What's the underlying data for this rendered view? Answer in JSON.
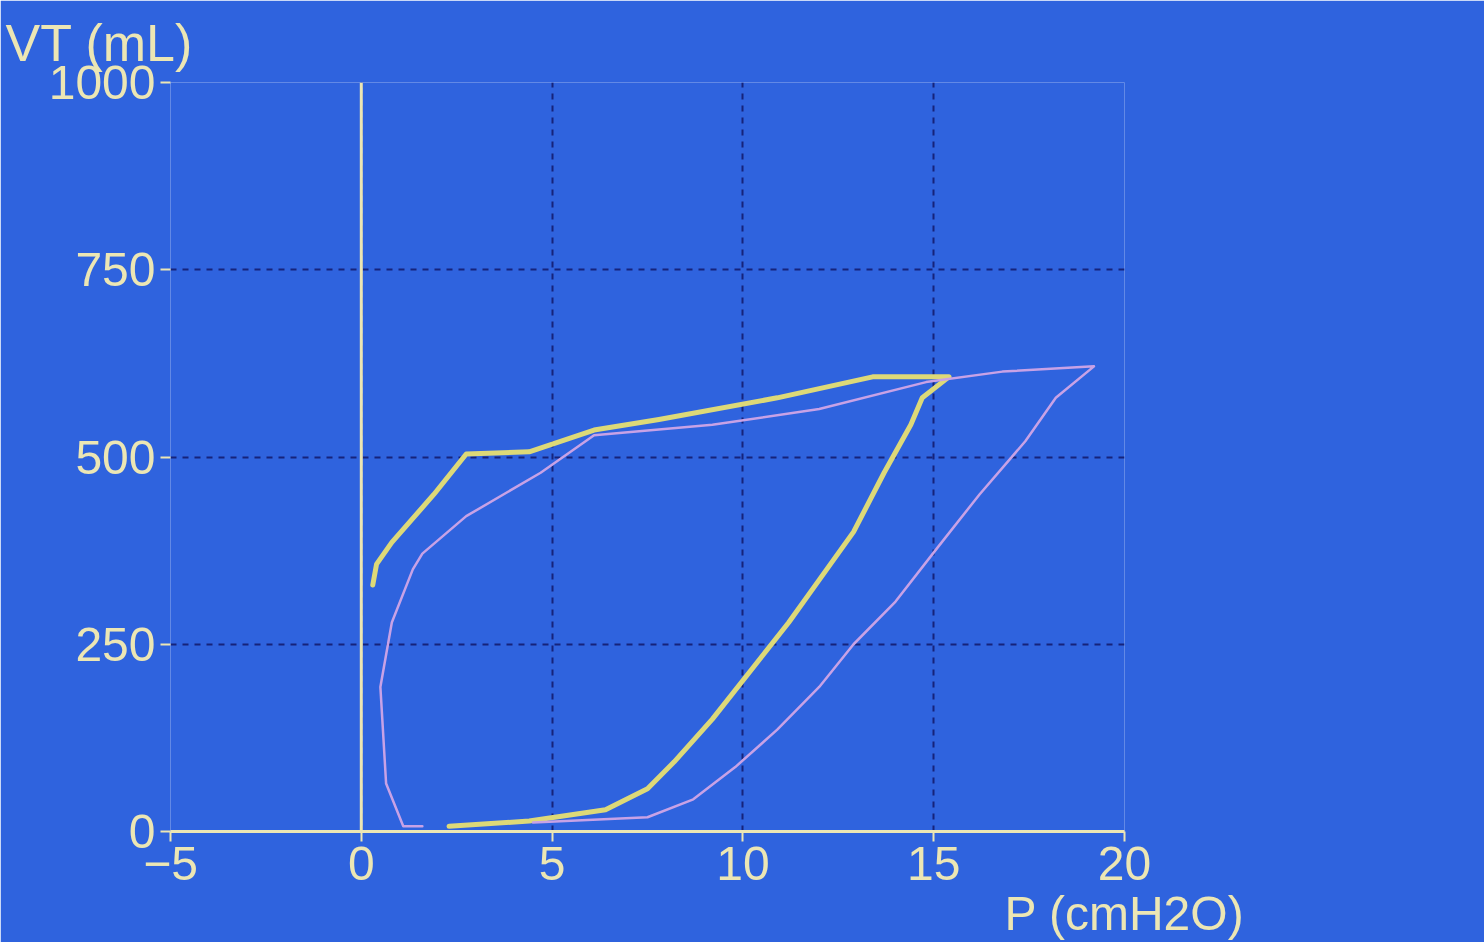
{
  "chart_data": {
    "type": "line",
    "xlabel": "P (cmH2O)",
    "ylabel": "VT (mL)",
    "xlim": [
      -5,
      20
    ],
    "ylim": [
      0,
      1000
    ],
    "xticks": [
      -5,
      0,
      5,
      10,
      15,
      20
    ],
    "yticks": [
      0,
      250,
      500,
      750,
      1000
    ],
    "grid": true,
    "marker": "none",
    "ref_lines": [
      {
        "axis": "x",
        "value": 0,
        "color": "#ece6b4"
      }
    ],
    "line_style": "solid",
    "series": [
      {
        "color": "#ddd978",
        "x": [
          2.3,
          4.4,
          6.4,
          7.5,
          8.2,
          9.2,
          10.3,
          11.2,
          12.0,
          12.9,
          13.7,
          14.4,
          14.7,
          15.4,
          13.4,
          10.9,
          7.8,
          6.1,
          4.4,
          2.75,
          1.9,
          0.8,
          0.4,
          0.3
        ],
        "values": [
          7,
          14,
          29,
          57,
          93,
          150,
          221,
          279,
          336,
          400,
          479,
          543,
          579,
          607,
          607,
          579,
          550,
          536,
          507,
          504,
          450,
          386,
          357,
          329
        ]
      },
      {
        "color": "#c8a2e6",
        "x": [
          1.6,
          1.1,
          0.65,
          0.5,
          0.8,
          1.35,
          1.6,
          2.75,
          4.7,
          6.1,
          9.2,
          12.0,
          14.8,
          16.8,
          19.2,
          18.2,
          17.4,
          16.2,
          15.1,
          14.0,
          12.9,
          12.0,
          10.9,
          9.8,
          8.7,
          7.5,
          4.5
        ],
        "values": [
          7,
          7,
          64,
          193,
          279,
          350,
          371,
          421,
          479,
          529,
          543,
          564,
          600,
          614,
          621,
          579,
          521,
          450,
          379,
          307,
          250,
          193,
          136,
          86,
          43,
          19,
          12
        ]
      }
    ]
  }
}
